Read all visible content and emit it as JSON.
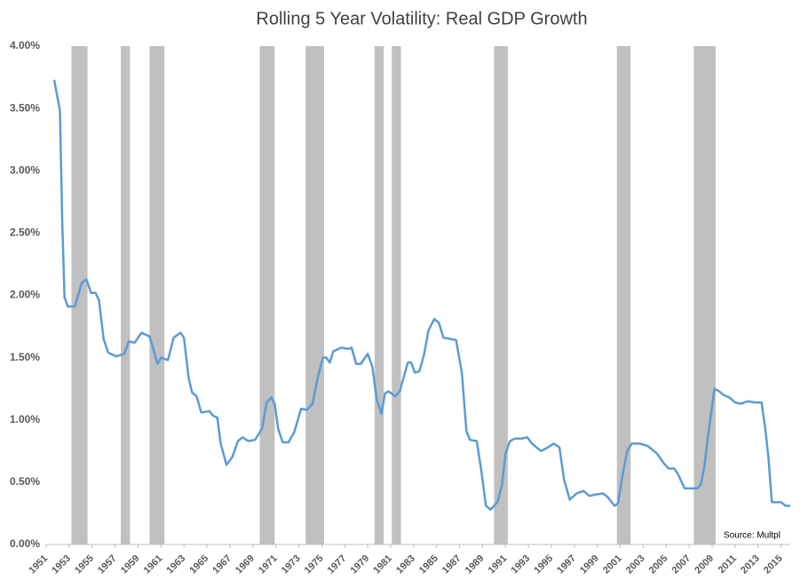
{
  "chart_data": {
    "type": "line",
    "title": "Rolling 5 Year Volatility: Real GDP Growth",
    "annotation": "Source: Multpl",
    "color": "#5b9bd5",
    "recession_color": "#c0c0c0",
    "recessions": [
      [
        1953.2,
        1954.6
      ],
      [
        1957.5,
        1958.3
      ],
      [
        1960.0,
        1961.3
      ],
      [
        1969.6,
        1970.9
      ],
      [
        1973.6,
        1975.2
      ],
      [
        1979.6,
        1980.4
      ],
      [
        1981.1,
        1981.9
      ],
      [
        1990.0,
        1991.2
      ],
      [
        2000.7,
        2001.9
      ],
      [
        2007.4,
        2009.3
      ]
    ],
    "x": [
      1951.7,
      1952.2,
      1952.4,
      1952.6,
      1952.9,
      1953.5,
      1954.1,
      1954.5,
      1954.9,
      1955.3,
      1955.6,
      1956.0,
      1956.4,
      1957.1,
      1957.8,
      1958.2,
      1958.7,
      1959.3,
      1960.0,
      1960.3,
      1960.7,
      1961.0,
      1961.6,
      1962.1,
      1962.7,
      1963.0,
      1963.4,
      1963.7,
      1964.1,
      1964.5,
      1965.2,
      1965.6,
      1965.9,
      1966.2,
      1966.7,
      1967.2,
      1967.7,
      1968.1,
      1968.6,
      1969.2,
      1969.8,
      1970.2,
      1970.6,
      1970.9,
      1971.2,
      1971.6,
      1972.1,
      1972.6,
      1973.2,
      1973.7,
      1974.2,
      1974.6,
      1975.1,
      1975.4,
      1975.7,
      1976.0,
      1976.7,
      1977.3,
      1977.6,
      1978.0,
      1978.4,
      1979.0,
      1979.4,
      1979.8,
      1980.2,
      1980.5,
      1980.8,
      1981.4,
      1981.8,
      1982.1,
      1982.5,
      1982.8,
      1983.1,
      1983.5,
      1983.9,
      1984.3,
      1984.8,
      1985.2,
      1985.6,
      1986.2,
      1986.7,
      1987.2,
      1987.6,
      1987.9,
      1988.5,
      1988.9,
      1989.3,
      1989.7,
      1990.3,
      1990.7,
      1991.0,
      1991.4,
      1991.8,
      1992.4,
      1992.9,
      1993.3,
      1994.1,
      1994.7,
      1995.2,
      1995.7,
      1996.1,
      1996.6,
      1997.2,
      1997.8,
      1998.3,
      1998.8,
      1999.5,
      1999.9,
      2000.5,
      2000.8,
      2001.2,
      2001.6,
      2002.0,
      2002.7,
      2003.4,
      2004.2,
      2004.8,
      2005.2,
      2005.7,
      2006.0,
      2006.6,
      2007.1,
      2007.7,
      2008.0,
      2008.3,
      2008.6,
      2009.2,
      2009.6,
      2010.0,
      2010.5,
      2011.0,
      2011.5,
      2012.1,
      2012.7,
      2013.3,
      2013.6,
      2013.9,
      2014.2,
      2014.6,
      2015.0,
      2015.4,
      2015.8
    ],
    "values": [
      3.73,
      3.48,
      2.59,
      1.98,
      1.91,
      1.91,
      2.1,
      2.13,
      2.02,
      2.02,
      1.96,
      1.65,
      1.54,
      1.51,
      1.53,
      1.63,
      1.62,
      1.7,
      1.67,
      1.58,
      1.45,
      1.5,
      1.48,
      1.66,
      1.7,
      1.66,
      1.34,
      1.22,
      1.19,
      1.06,
      1.07,
      1.03,
      1.02,
      0.81,
      0.64,
      0.7,
      0.83,
      0.86,
      0.83,
      0.84,
      0.93,
      1.14,
      1.18,
      1.13,
      0.93,
      0.82,
      0.82,
      0.9,
      1.09,
      1.08,
      1.13,
      1.32,
      1.5,
      1.5,
      1.46,
      1.55,
      1.58,
      1.57,
      1.58,
      1.45,
      1.45,
      1.53,
      1.43,
      1.16,
      1.05,
      1.21,
      1.23,
      1.19,
      1.23,
      1.33,
      1.46,
      1.46,
      1.38,
      1.39,
      1.52,
      1.72,
      1.81,
      1.78,
      1.66,
      1.65,
      1.64,
      1.38,
      0.91,
      0.84,
      0.83,
      0.59,
      0.31,
      0.28,
      0.34,
      0.48,
      0.73,
      0.83,
      0.85,
      0.85,
      0.86,
      0.81,
      0.75,
      0.78,
      0.81,
      0.78,
      0.52,
      0.36,
      0.41,
      0.43,
      0.39,
      0.4,
      0.41,
      0.38,
      0.31,
      0.33,
      0.56,
      0.75,
      0.81,
      0.81,
      0.79,
      0.73,
      0.65,
      0.61,
      0.61,
      0.57,
      0.45,
      0.45,
      0.45,
      0.48,
      0.61,
      0.84,
      1.25,
      1.23,
      1.2,
      1.18,
      1.14,
      1.13,
      1.15,
      1.14,
      1.14,
      0.95,
      0.7,
      0.34,
      0.34,
      0.34,
      0.31,
      0.31
    ],
    "xlim": [
      1951,
      2015.8
    ],
    "xticks": [
      1951,
      1953,
      1955,
      1957,
      1959,
      1961,
      1963,
      1965,
      1967,
      1969,
      1971,
      1973,
      1975,
      1977,
      1979,
      1981,
      1983,
      1985,
      1987,
      1989,
      1991,
      1993,
      1995,
      1997,
      1999,
      2001,
      2003,
      2005,
      2007,
      2009,
      2011,
      2013,
      2015
    ],
    "ylim": [
      0,
      4
    ],
    "yticks": [
      {
        "value": 0,
        "label": "0.00%"
      },
      {
        "value": 0.5,
        "label": "0.50%"
      },
      {
        "value": 1,
        "label": "1.00%"
      },
      {
        "value": 1.5,
        "label": "1.50%"
      },
      {
        "value": 2,
        "label": "2.00%"
      },
      {
        "value": 2.5,
        "label": "2.50%"
      },
      {
        "value": 3,
        "label": "3.00%"
      },
      {
        "value": 3.5,
        "label": "3.50%"
      },
      {
        "value": 4,
        "label": "4.00%"
      }
    ]
  }
}
